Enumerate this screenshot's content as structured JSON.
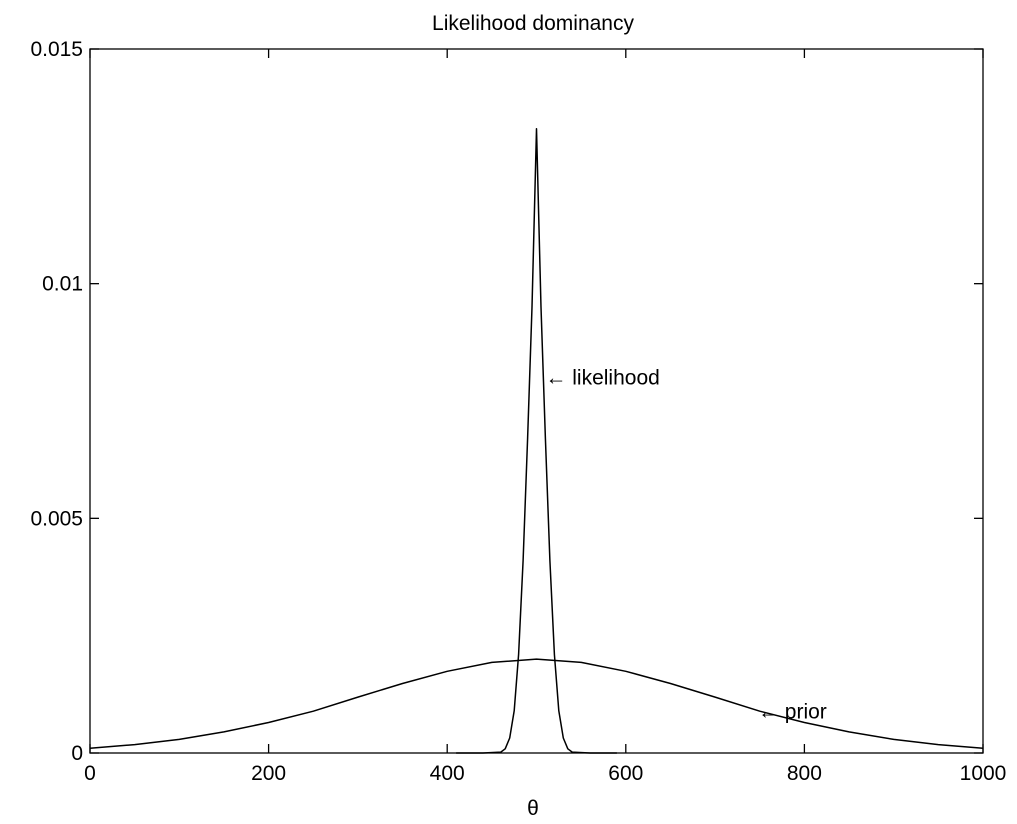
{
  "chart_data": {
    "type": "line",
    "title": "Likelihood dominancy",
    "xlabel": "θ",
    "ylabel": "",
    "xlim": [
      0,
      1000
    ],
    "ylim": [
      0,
      0.015
    ],
    "grid": false,
    "x_ticks": [
      0,
      200,
      400,
      600,
      800,
      1000
    ],
    "x_tick_labels": [
      "0",
      "200",
      "400",
      "600",
      "800",
      "1000"
    ],
    "y_ticks": [
      0,
      0.005,
      0.01,
      0.015
    ],
    "y_tick_labels": [
      "0",
      "0.005",
      "0.01",
      "0.015"
    ],
    "series": [
      {
        "id": "prior",
        "color": "#000000",
        "x": [
          0,
          50,
          100,
          150,
          200,
          250,
          300,
          350,
          400,
          450,
          500,
          550,
          600,
          650,
          700,
          750,
          800,
          850,
          900,
          950,
          1000
        ],
        "y": [
          0.0001,
          0.00018,
          0.00029,
          0.00045,
          0.00065,
          0.00089,
          0.00119,
          0.00148,
          0.00174,
          0.00193,
          0.002,
          0.00193,
          0.00174,
          0.00148,
          0.00119,
          0.00089,
          0.00065,
          0.00045,
          0.00029,
          0.00018,
          0.0001
        ]
      },
      {
        "id": "likelihood",
        "color": "#000000",
        "x": [
          410,
          440,
          460,
          465,
          470,
          475,
          480,
          485,
          490,
          495,
          500,
          505,
          510,
          515,
          520,
          525,
          530,
          535,
          540,
          560,
          590
        ],
        "y": [
          0,
          0,
          2e-05,
          9e-05,
          0.00032,
          0.0009,
          0.0021,
          0.0041,
          0.0067,
          0.0095,
          0.0133,
          0.0095,
          0.0067,
          0.0041,
          0.0021,
          0.0009,
          0.00032,
          9e-05,
          2e-05,
          0,
          0
        ]
      }
    ],
    "annotations": [
      {
        "text": "← likelihood",
        "x": 510,
        "y": 0.008
      },
      {
        "text": "← prior",
        "x": 748,
        "y": 0.00088
      }
    ]
  }
}
